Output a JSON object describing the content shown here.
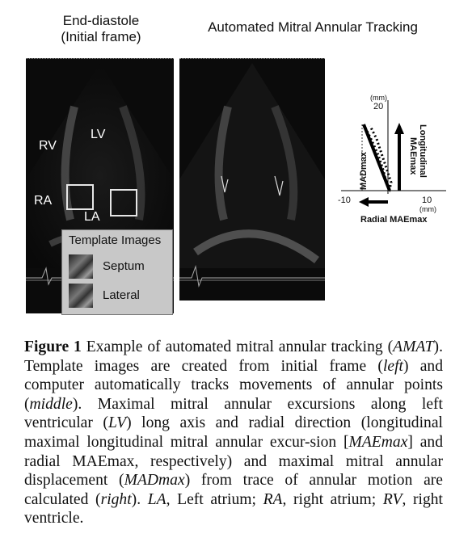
{
  "headers": {
    "left": "End-diastole",
    "left_sub": "(Initial frame)",
    "right": "Automated Mitral Annular Tracking"
  },
  "left_panel": {
    "labels": {
      "lv": "LV",
      "rv": "RV",
      "ra": "RA",
      "la": "LA"
    }
  },
  "template_box": {
    "title": "Template Images",
    "items": [
      "Septum",
      "Lateral"
    ]
  },
  "plot": {
    "unit_top": "(mm)",
    "y_tick_20": "20",
    "x_tick_neg10": "-10",
    "x_tick_10": "10",
    "unit_x": "(mm)",
    "arrow_longitudinal": "Longitudinal",
    "arrow_maemax": "MAEmax",
    "label_madmax": "MADmax",
    "label_radial": "Radial MAEmax"
  },
  "caption": {
    "fig_label": "Figure 1",
    "t1": " Example of automated mitral annular tracking (",
    "amat": "AMAT",
    "t2": "). Template images are created from initial frame (",
    "left": "left",
    "t3": ") and computer automatically tracks movements of annular points (",
    "middle": "middle",
    "t4": "). Maximal mitral annular excursions along left ventricular (",
    "lv": "LV",
    "t5": ") long axis and radial direction (longitudinal maximal longitudinal mitral annular excur-sion [",
    "maemax": "MAEmax",
    "t6": "] and radial MAEmax, respectively) and maximal mitral annular displacement (",
    "madmax": "MADmax",
    "t7": ") from trace of annular motion are calculated (",
    "right": "right",
    "t8": "). ",
    "la": "LA",
    "t9": ", Left atrium; ",
    "ra": "RA",
    "t10": ", right atrium; ",
    "rv": "RV",
    "t11": ", right ventricle."
  }
}
